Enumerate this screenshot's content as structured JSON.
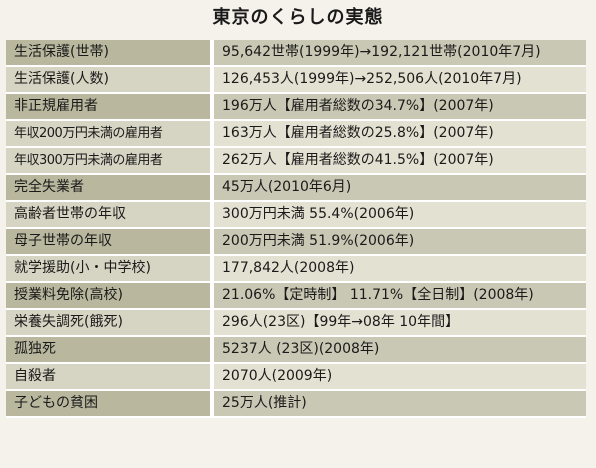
{
  "title": "東京のくらしの実態",
  "rows": [
    {
      "label": "生活保護(世帯)",
      "value": "95,642世帯(1999年)→192,121世帯(2010年7月)"
    },
    {
      "label": "生活保護(人数)",
      "value": "126,453人(1999年)→252,506人(2010年7月)"
    },
    {
      "label": "非正規雇用者",
      "value": "196万人【雇用者総数の34.7%】(2007年)"
    },
    {
      "label": "年収200万円未満の雇用者",
      "value": "163万人【雇用者総数の25.8%】(2007年)"
    },
    {
      "label": "年収300万円未満の雇用者",
      "value": "262万人【雇用者総数の41.5%】(2007年)"
    },
    {
      "label": "完全失業者",
      "value": "45万人(2010年6月)"
    },
    {
      "label": "高齢者世帯の年収",
      "value": "300万円未満 55.4%(2006年)"
    },
    {
      "label": "母子世帯の年収",
      "value": "200万円未満 51.9%(2006年)"
    },
    {
      "label": "就学援助(小・中学校)",
      "value": "177,842人(2008年)"
    },
    {
      "label": "授業料免除(高校)",
      "value": "21.06%【定時制】 11.71%【全日制】(2008年)"
    },
    {
      "label": "栄養失調死(餓死)",
      "value": "296人(23区)【99年→08年 10年間】"
    },
    {
      "label": "孤独死",
      "value": "5237人 (23区)(2008年)"
    },
    {
      "label": "自殺者",
      "value": "2070人(2009年)"
    },
    {
      "label": "子どもの貧困",
      "value": "25万人(推計)"
    }
  ]
}
